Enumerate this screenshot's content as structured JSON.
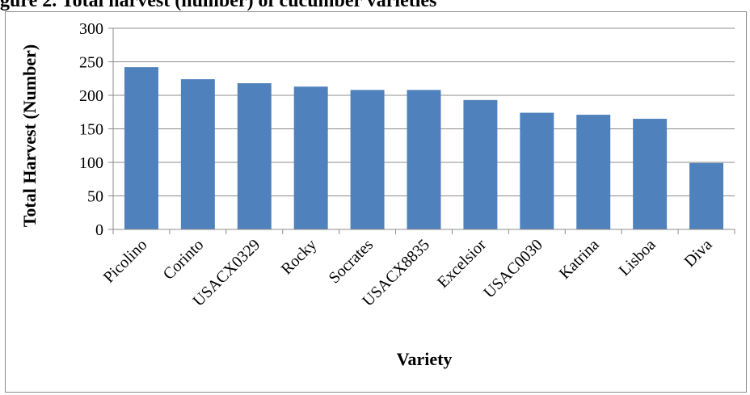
{
  "header_fragment": "gure 2. Total harvest (number) of cucumber varieties",
  "chart_data": {
    "type": "bar",
    "title": "",
    "xlabel": "Variety",
    "ylabel": "Total Harvest (Number)",
    "categories": [
      "Picolino",
      "Corinto",
      "USACX0329",
      "Rocky",
      "Socrates",
      "USACX8835",
      "Excelsior",
      "USAC0030",
      "Katrina",
      "Lisboa",
      "Diva"
    ],
    "values": [
      242,
      224,
      218,
      213,
      208,
      208,
      193,
      174,
      171,
      165,
      99
    ],
    "ylim": [
      0,
      300
    ],
    "yticks": [
      0,
      50,
      100,
      150,
      200,
      250,
      300
    ],
    "grid": true,
    "legend": "none",
    "bar_color": "#4f81bd"
  }
}
